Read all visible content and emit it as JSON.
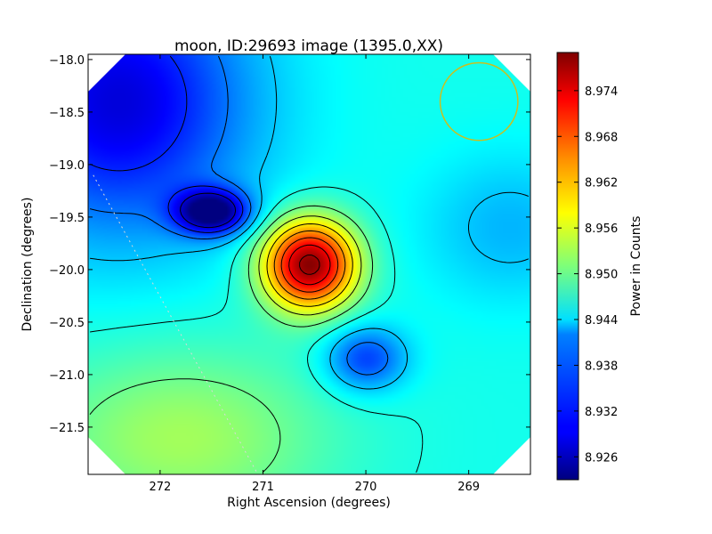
{
  "chart_data": {
    "type": "heatmap",
    "title": "moon, ID:29693 image (1395.0,XX)",
    "xlabel": "Right Ascension (degrees)",
    "ylabel": "Declination (degrees)",
    "xlim": [
      272.7,
      268.4
    ],
    "ylim": [
      -21.95,
      -17.95
    ],
    "x_ticks": [
      272,
      271,
      270,
      269
    ],
    "x_tick_labels": [
      "272",
      "271",
      "270",
      "269"
    ],
    "y_ticks": [
      -18.0,
      -18.5,
      -19.0,
      -19.5,
      -20.0,
      -20.5,
      -21.0,
      -21.5
    ],
    "y_tick_labels": [
      "−18.0",
      "−18.5",
      "−19.0",
      "−19.5",
      "−20.0",
      "−20.5",
      "−21.0",
      "−21.5"
    ],
    "colorbar": {
      "label": "Power in Counts",
      "range": [
        8.923,
        8.979
      ],
      "colormap": "jet",
      "ticks": [
        8.926,
        8.932,
        8.938,
        8.944,
        8.95,
        8.956,
        8.962,
        8.968,
        8.974
      ],
      "tick_labels": [
        "8.926",
        "8.932",
        "8.938",
        "8.944",
        "8.950",
        "8.956",
        "8.962",
        "8.968",
        "8.974"
      ]
    },
    "baseline_value": 8.945,
    "features": [
      {
        "kind": "peak",
        "ra": 270.55,
        "dec": -19.95,
        "value": 8.979
      },
      {
        "kind": "trough",
        "ra": 271.5,
        "dec": -19.45,
        "value": 8.923
      },
      {
        "kind": "trough",
        "ra": 270.0,
        "dec": -20.85,
        "value": 8.933
      },
      {
        "kind": "trough",
        "ra": 272.4,
        "dec": -18.4,
        "value": 8.928
      },
      {
        "kind": "trough",
        "ra": 268.6,
        "dec": -19.6,
        "value": 8.94
      },
      {
        "kind": "plateau",
        "ra": 271.8,
        "dec": -21.6,
        "value": 8.953
      }
    ],
    "beam_circle": {
      "ra": 268.9,
      "dec": -18.4,
      "radius_deg": 0.37,
      "color": "#c8c020"
    },
    "dotted_line": {
      "points": [
        [
          272.65,
          -19.1
        ],
        [
          271.05,
          -21.95
        ]
      ],
      "color": "#d8d8d8"
    },
    "contour_color": "#000000"
  }
}
